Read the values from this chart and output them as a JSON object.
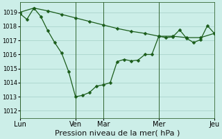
{
  "background_color": "#cceee8",
  "grid_color": "#aad4cc",
  "line_color": "#1a5c1a",
  "marker_color": "#1a5c1a",
  "xlabel": "Pression niveau de la mer( hPa )",
  "ylim": [
    1011.5,
    1019.7
  ],
  "yticks": [
    1012,
    1013,
    1014,
    1015,
    1016,
    1017,
    1018,
    1019
  ],
  "day_labels": [
    "Lun",
    "Ven",
    "Mar",
    "Mer",
    "Jeu"
  ],
  "day_positions": [
    0,
    16,
    24,
    40,
    56
  ],
  "series1_x": [
    0,
    4,
    8,
    12,
    16,
    20,
    24,
    28,
    32,
    36,
    40,
    44,
    48,
    52,
    56
  ],
  "series1_y": [
    1019.0,
    1019.3,
    1019.1,
    1018.85,
    1018.6,
    1018.35,
    1018.1,
    1017.85,
    1017.65,
    1017.5,
    1017.3,
    1017.3,
    1017.2,
    1017.2,
    1017.5
  ],
  "series2_x": [
    0,
    2,
    4,
    6,
    8,
    10,
    12,
    14,
    16,
    18,
    20,
    22,
    24,
    26,
    28,
    30,
    32,
    34,
    36,
    38,
    40,
    42,
    44,
    46,
    48,
    50,
    52,
    54,
    56
  ],
  "series2_y": [
    1018.9,
    1018.5,
    1019.3,
    1018.7,
    1017.7,
    1016.85,
    1016.1,
    1014.8,
    1013.0,
    1013.1,
    1013.3,
    1013.75,
    1013.85,
    1014.0,
    1015.5,
    1015.65,
    1015.55,
    1015.6,
    1016.0,
    1016.0,
    1017.3,
    1017.2,
    1017.25,
    1017.75,
    1017.15,
    1016.85,
    1017.05,
    1018.05,
    1017.5
  ],
  "xlim": [
    0,
    56
  ],
  "xlabel_fontsize": 8,
  "ytick_fontsize": 6,
  "xtick_fontsize": 7,
  "linewidth": 0.9,
  "markersize": 2.5,
  "spine_color": "#336633"
}
